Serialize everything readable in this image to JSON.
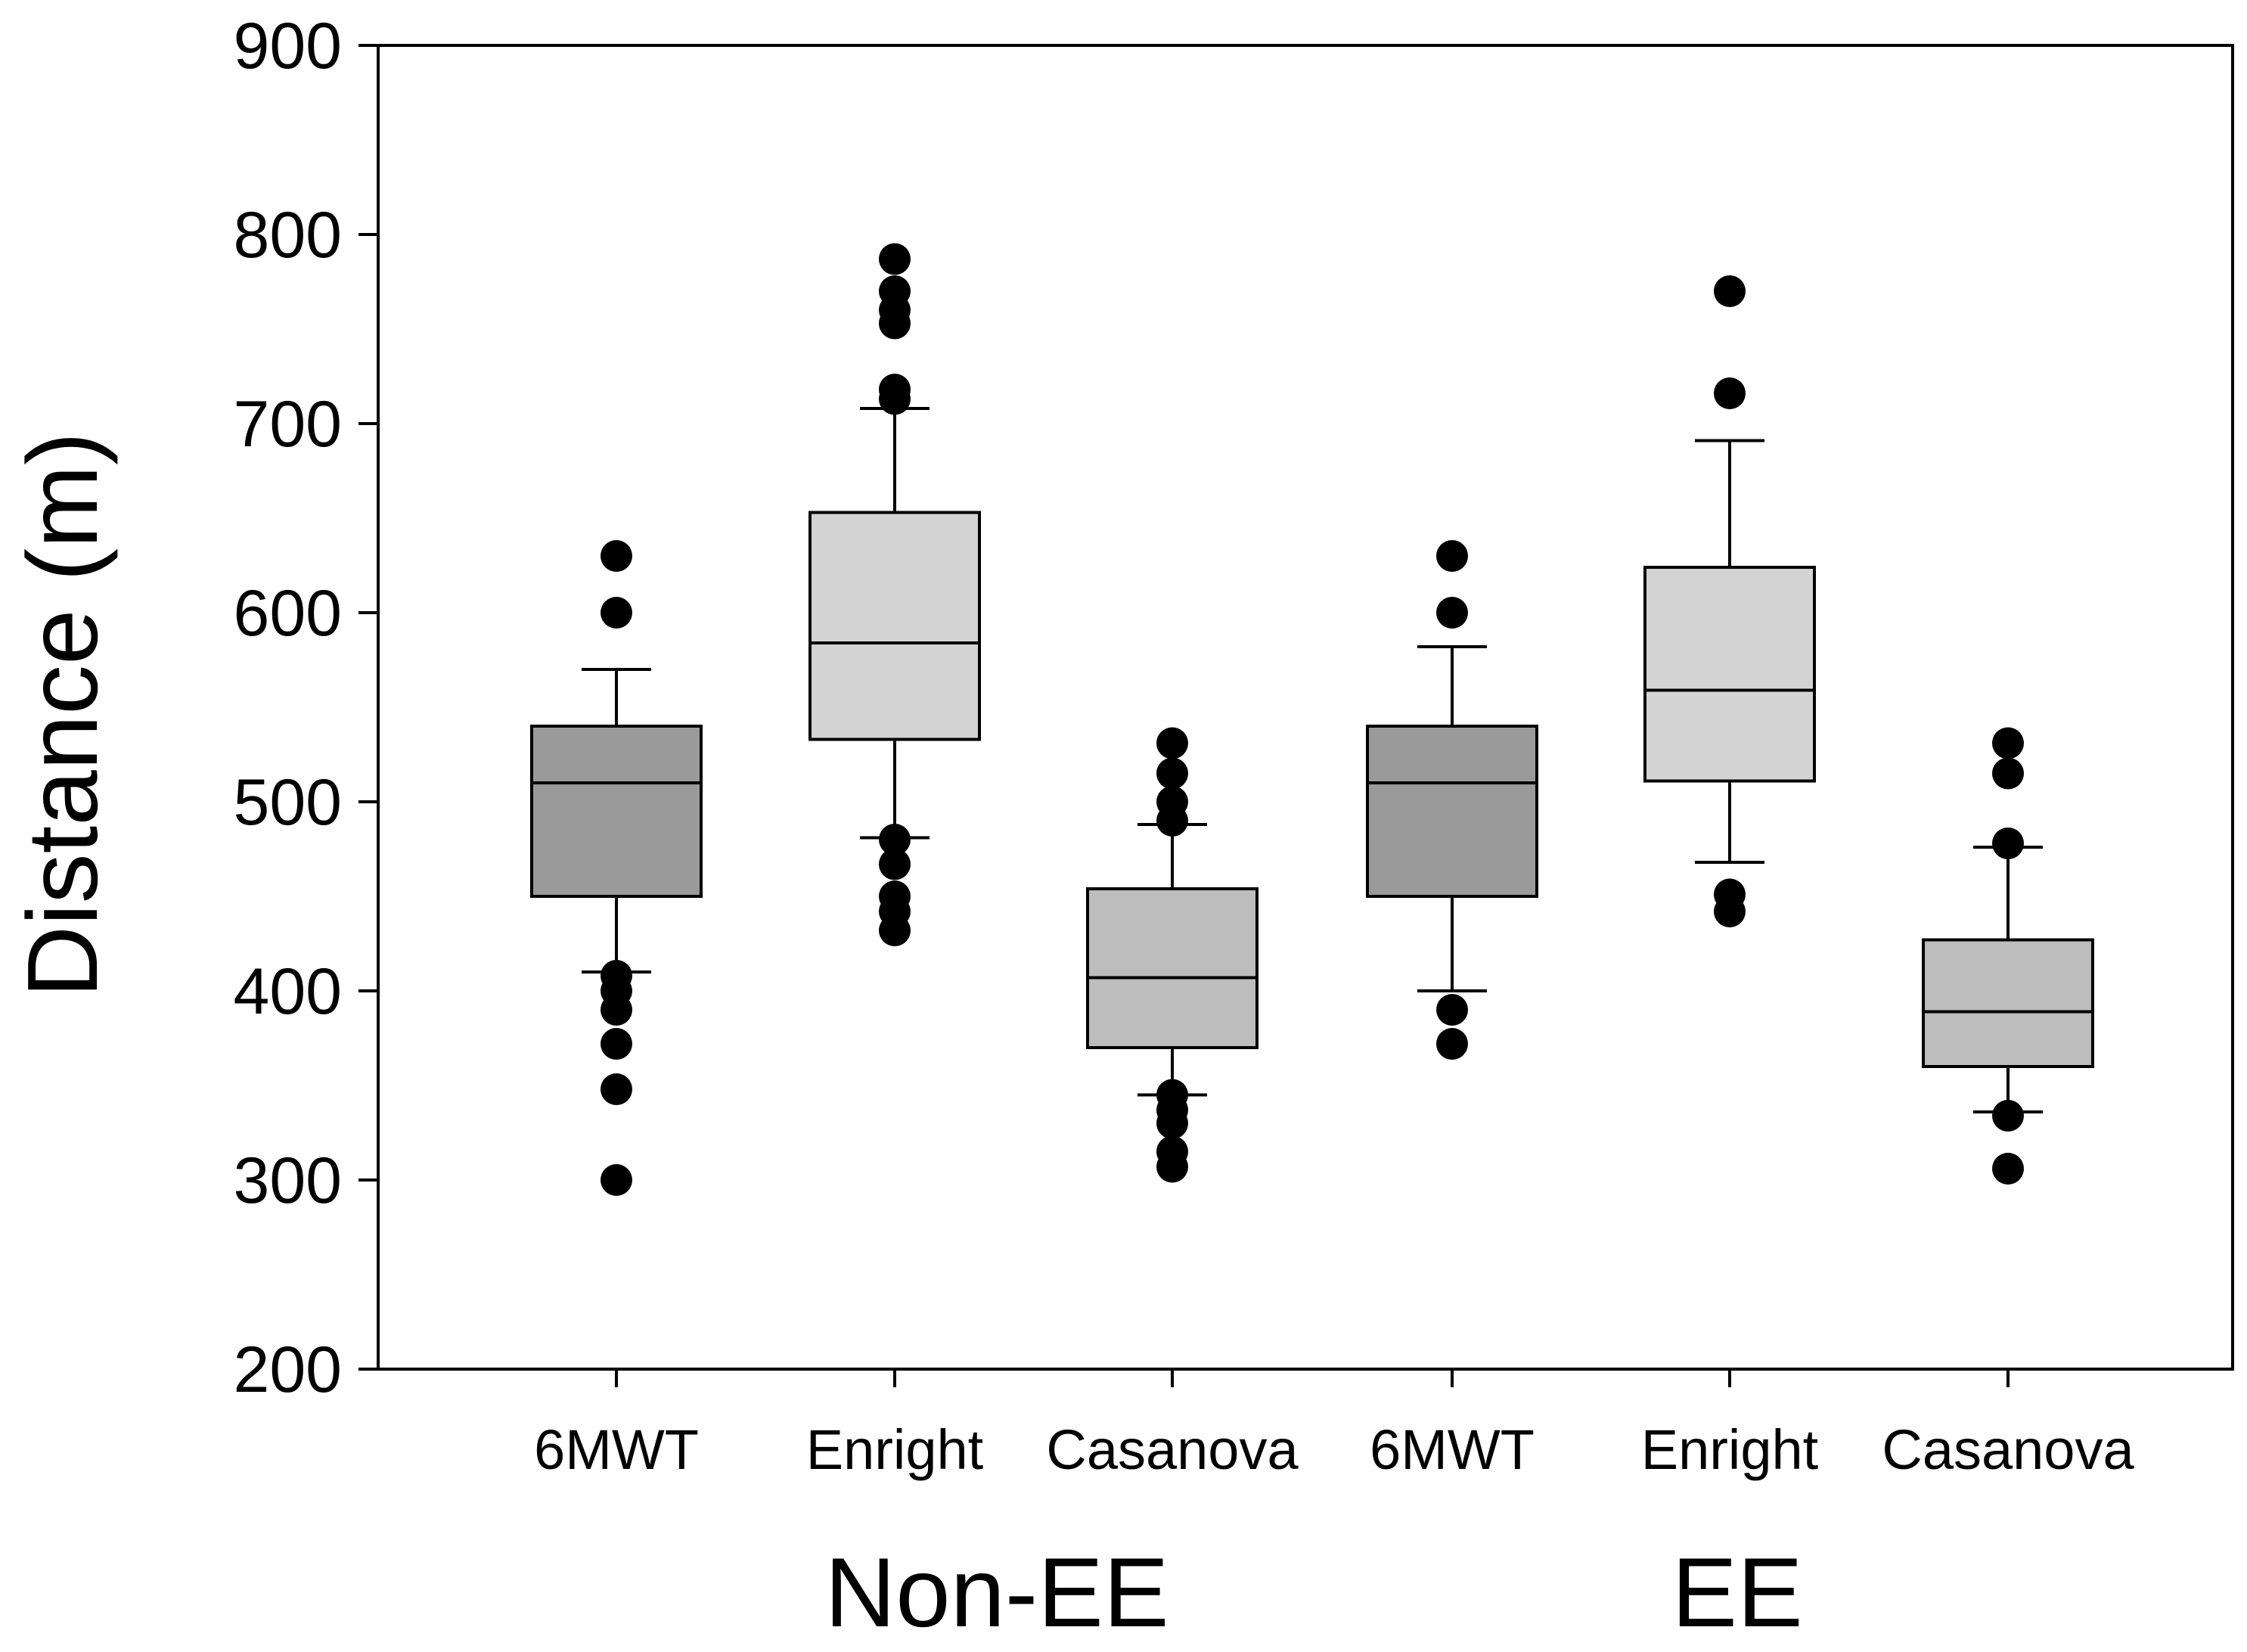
{
  "chart_data": {
    "type": "box",
    "ylabel": "Distance (m)",
    "ylim": [
      200,
      900
    ],
    "yticks": [
      200,
      300,
      400,
      500,
      600,
      700,
      800,
      900
    ],
    "groups": [
      {
        "label": "Non-EE",
        "categories": [
          "6MWT",
          "Enright",
          "Casanova"
        ]
      },
      {
        "label": "EE",
        "categories": [
          "6MWT",
          "Enright",
          "Casanova"
        ]
      }
    ],
    "boxes": [
      {
        "group": "Non-EE",
        "category": "6MWT",
        "whisker_low": 410,
        "q1": 450,
        "median": 510,
        "q3": 540,
        "whisker_high": 570,
        "outliers": [
          630,
          600,
          408,
          400,
          390,
          372,
          348,
          300
        ],
        "color": "#9a9a9a"
      },
      {
        "group": "Non-EE",
        "category": "Enright",
        "whisker_low": 481,
        "q1": 533,
        "median": 584,
        "q3": 653,
        "whisker_high": 708,
        "outliers": [
          787,
          770,
          760,
          753,
          718,
          713,
          480,
          467,
          450,
          442,
          432
        ],
        "color": "#d3d3d3"
      },
      {
        "group": "Non-EE",
        "category": "Casanova",
        "whisker_low": 345,
        "q1": 370,
        "median": 407,
        "q3": 454,
        "whisker_high": 488,
        "outliers": [
          531,
          515,
          500,
          490,
          345,
          337,
          330,
          315,
          307
        ],
        "color": "#bdbdbd"
      },
      {
        "group": "EE",
        "category": "6MWT",
        "whisker_low": 400,
        "q1": 450,
        "median": 510,
        "q3": 540,
        "whisker_high": 582,
        "outliers": [
          630,
          600,
          390,
          372
        ],
        "color": "#9a9a9a"
      },
      {
        "group": "EE",
        "category": "Enright",
        "whisker_low": 468,
        "q1": 511,
        "median": 559,
        "q3": 624,
        "whisker_high": 691,
        "outliers": [
          770,
          716,
          451,
          442
        ],
        "color": "#d3d3d3"
      },
      {
        "group": "EE",
        "category": "Casanova",
        "whisker_low": 336,
        "q1": 360,
        "median": 389,
        "q3": 427,
        "whisker_high": 476,
        "outliers": [
          531,
          515,
          478,
          334,
          306
        ],
        "color": "#bdbdbd"
      }
    ]
  }
}
